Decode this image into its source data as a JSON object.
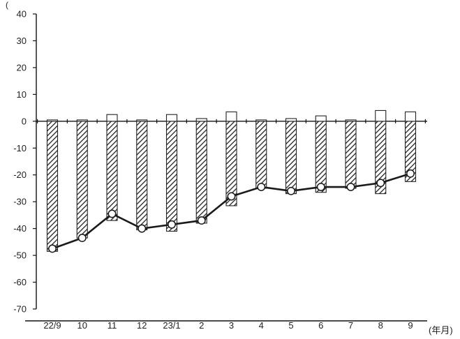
{
  "chart_data": {
    "type": "bar",
    "categories": [
      "22/9",
      "10",
      "11",
      "12",
      "23/1",
      "2",
      "3",
      "4",
      "5",
      "6",
      "7",
      "8",
      "9"
    ],
    "ylim": [
      -70,
      40
    ],
    "yticks": [
      40,
      30,
      20,
      10,
      0,
      -10,
      -20,
      -30,
      -40,
      -50,
      -60,
      -70
    ],
    "y_unit_mark": "(",
    "x_unit": "(年月)",
    "grid": false,
    "series": [
      {
        "style": "hatched-bar",
        "values": [
          -48.5,
          -43.5,
          -37.0,
          -40.5,
          -41.0,
          -38.0,
          -31.5,
          -25.0,
          -27.0,
          -26.5,
          -25.0,
          -27.0,
          -22.5
        ]
      },
      {
        "style": "white-bar",
        "values": [
          0.5,
          0.5,
          2.5,
          0.5,
          2.5,
          1.0,
          3.5,
          0.5,
          1.0,
          2.0,
          0.5,
          4.0,
          3.5
        ]
      },
      {
        "style": "line-with-markers",
        "values": [
          -47.5,
          -43.5,
          -34.5,
          -40.0,
          -38.5,
          -37.0,
          -28.0,
          -24.5,
          -26.0,
          -24.5,
          -24.5,
          -23.0,
          -19.5
        ]
      }
    ]
  }
}
